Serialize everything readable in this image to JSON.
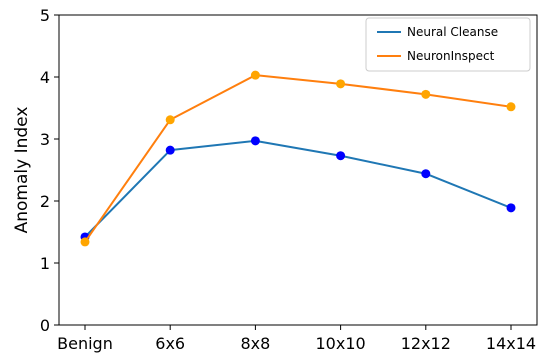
{
  "chart_data": {
    "type": "line",
    "categories": [
      "Benign",
      "6x6",
      "8x8",
      "10x10",
      "12x12",
      "14x14"
    ],
    "series": [
      {
        "name": "Neural Cleanse",
        "values": [
          1.42,
          2.82,
          2.97,
          2.73,
          2.44,
          1.89
        ],
        "line_color": "#1f77b4",
        "marker_color": "#0000ff"
      },
      {
        "name": "NeuronInspect",
        "values": [
          1.34,
          3.31,
          4.03,
          3.89,
          3.72,
          3.52
        ],
        "line_color": "#ff7f0e",
        "marker_color": "#ffa500"
      }
    ],
    "xlabel": "",
    "ylabel": "Anomaly Index",
    "ylim": [
      0,
      5
    ],
    "yticks": [
      "0",
      "1",
      "2",
      "3",
      "4",
      "5"
    ],
    "grid": false,
    "legend_position": "top-right"
  }
}
